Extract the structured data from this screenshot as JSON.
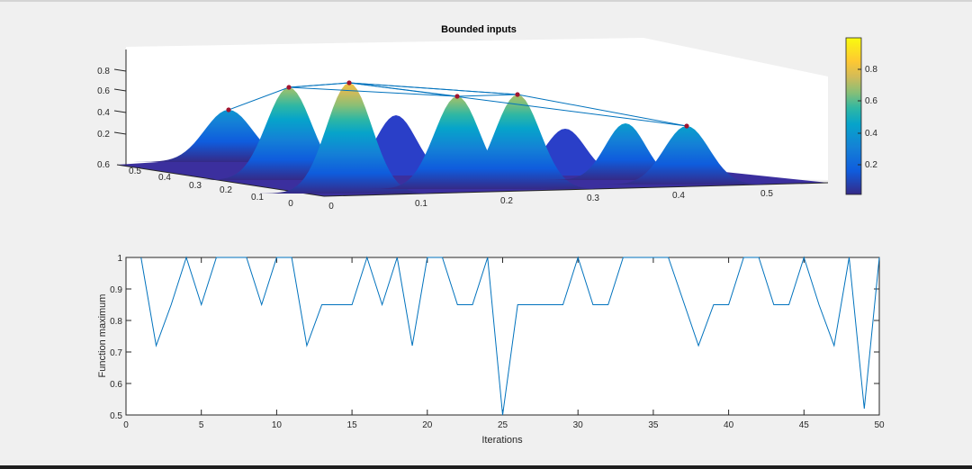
{
  "figure": {
    "colors": {
      "background": "#f0f0f0",
      "axes": "#ffffff",
      "line": "#0072bd",
      "marker": "#a2142f"
    }
  },
  "chart_data": [
    {
      "type": "surface",
      "title": "Bounded inputs",
      "colormap": "parula",
      "x_ticks": [
        "0",
        "0.1",
        "0.2",
        "0.3",
        "0.4",
        "0.5"
      ],
      "y_ticks": [
        "0",
        "0.1",
        "0.2",
        "0.3",
        "0.4",
        "0.5",
        "0.6"
      ],
      "z_ticks": [
        "0.2",
        "0.4",
        "0.6",
        "0.8"
      ],
      "colorbar_ticks": [
        "0.2",
        "0.4",
        "0.6",
        "0.8"
      ],
      "colorbar_range": [
        0,
        1
      ],
      "grid": false,
      "marker_peak_heights": [
        0.42,
        0.65,
        0.68,
        0.55,
        0.57,
        0.35
      ]
    },
    {
      "type": "line",
      "title": "",
      "xlabel": "Iterations",
      "ylabel": "Function maximum",
      "xlim": [
        0,
        50
      ],
      "ylim": [
        0.5,
        1
      ],
      "x_ticks": [
        "0",
        "5",
        "10",
        "15",
        "20",
        "25",
        "30",
        "35",
        "40",
        "45",
        "50"
      ],
      "y_ticks": [
        "0.5",
        "0.6",
        "0.7",
        "0.8",
        "0.9",
        "1"
      ],
      "grid": false,
      "x": [
        1,
        2,
        3,
        4,
        5,
        6,
        7,
        8,
        9,
        10,
        11,
        12,
        13,
        14,
        15,
        16,
        17,
        18,
        19,
        20,
        21,
        22,
        23,
        24,
        25,
        26,
        27,
        28,
        29,
        30,
        31,
        32,
        33,
        34,
        35,
        36,
        37,
        38,
        39,
        40,
        41,
        42,
        43,
        44,
        45,
        46,
        47,
        48,
        49,
        50
      ],
      "y": [
        1,
        0.72,
        0.85,
        1,
        0.85,
        1,
        1,
        1,
        0.85,
        1,
        1,
        0.72,
        0.85,
        0.85,
        0.85,
        1,
        0.85,
        1,
        0.72,
        1,
        1,
        0.85,
        0.85,
        1,
        0.5,
        0.85,
        0.85,
        0.85,
        0.85,
        1,
        0.85,
        0.85,
        1,
        1,
        1,
        1,
        0.86,
        0.72,
        0.85,
        0.85,
        1,
        1,
        0.85,
        0.85,
        1,
        0.85,
        0.72,
        1,
        0.52,
        1
      ]
    }
  ]
}
